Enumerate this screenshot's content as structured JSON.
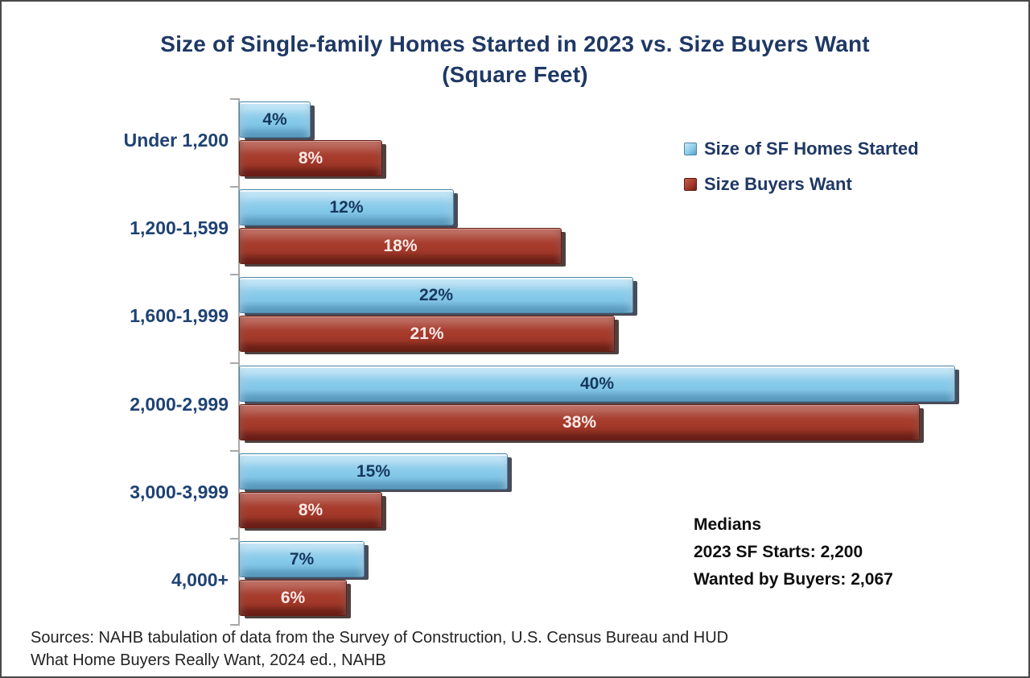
{
  "title": {
    "line1": "Size of Single-family  Homes Started in 2023 vs. Size Buyers Want",
    "line2": "(Square Feet)"
  },
  "legend": [
    {
      "label": "Size of SF Homes Started",
      "color": "#8CCDEC"
    },
    {
      "label": "Size Buyers Want",
      "color": "#A63A2B"
    }
  ],
  "chart_data": {
    "type": "bar",
    "orientation": "horizontal",
    "title": "Size of Single-family Homes Started in 2023 vs. Size Buyers Want (Square Feet)",
    "categories": [
      "Under 1,200",
      "1,200-1,599",
      "1,600-1,999",
      "2,000-2,999",
      "3,000-3,999",
      "4,000+"
    ],
    "series": [
      {
        "name": "Size of SF Homes Started",
        "values": [
          4,
          12,
          22,
          40,
          15,
          7
        ]
      },
      {
        "name": "Size Buyers Want",
        "values": [
          8,
          18,
          21,
          38,
          8,
          6
        ]
      }
    ],
    "value_suffix": "%",
    "xlabel": "",
    "ylabel": "",
    "xlim": [
      0,
      40
    ],
    "grid": false,
    "legend_position": "upper right"
  },
  "annotations": {
    "medians_title": "Medians",
    "medians_line1": "2023 SF Starts: 2,200",
    "medians_line2": "Wanted by Buyers: 2,067"
  },
  "footer": {
    "line1": "Sources: NAHB tabulation of data from the Survey of Construction, U.S. Census Bureau and HUD",
    "line2": "What Home Buyers Really Want, 2024 ed., NAHB"
  },
  "colors": {
    "title_navy": "#1F3864",
    "category_navy": "#1F4273",
    "bar_blue": "#85C9EA",
    "bar_red": "#A63A2B",
    "blue_label": "#17375E",
    "red_label": "#FBEAE8",
    "axis_gray": "#A8A8A8",
    "frame_border": "#494949"
  }
}
